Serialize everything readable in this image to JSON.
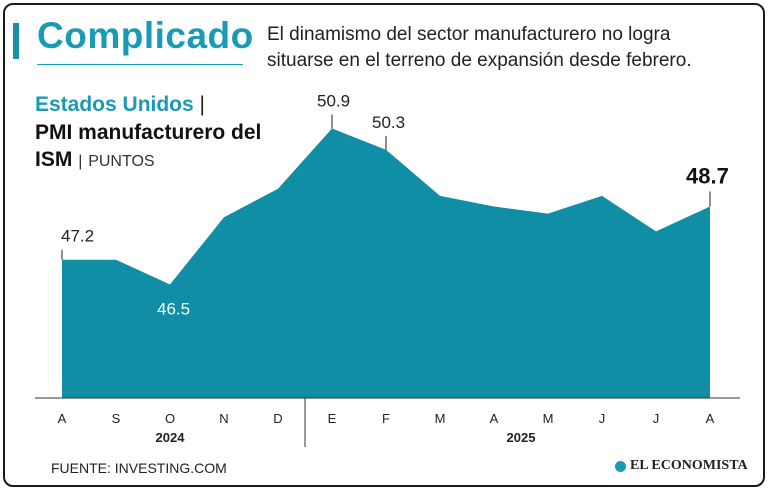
{
  "header": {
    "title": "Complicado",
    "subtitle": "El dinamismo del sector manufacturero no logra situarse en el terreno de expansión desde febrero."
  },
  "legend": {
    "country": "Estados Unidos",
    "separator": "|",
    "indicator": "PMI manufacturero del ISM",
    "units": "PUNTOS"
  },
  "colors": {
    "accent": "#1a9bb5",
    "area": "#0f8ea6",
    "text": "#222222"
  },
  "chart_data": {
    "type": "area",
    "title": "PMI manufacturero del ISM",
    "ylabel": "Puntos",
    "categories": [
      "A",
      "S",
      "O",
      "N",
      "D",
      "E",
      "F",
      "M",
      "A",
      "M",
      "J",
      "J",
      "A"
    ],
    "years": [
      {
        "label": "2024",
        "from": 0,
        "to": 4
      },
      {
        "label": "2025",
        "from": 5,
        "to": 12
      }
    ],
    "values": [
      47.2,
      47.2,
      46.5,
      48.4,
      49.2,
      50.9,
      50.3,
      49.0,
      48.7,
      48.5,
      49.0,
      48.0,
      48.7
    ],
    "ylim": [
      43.3,
      51.0
    ],
    "labels": [
      {
        "index": 0,
        "text": "47.2"
      },
      {
        "index": 2,
        "text": "46.5"
      },
      {
        "index": 5,
        "text": "50.9"
      },
      {
        "index": 6,
        "text": "50.3"
      },
      {
        "index": 12,
        "text": "48.7"
      }
    ]
  },
  "footer": {
    "source": "FUENTE: INVESTING.COM",
    "brand": "EL ECONOMISTA"
  }
}
